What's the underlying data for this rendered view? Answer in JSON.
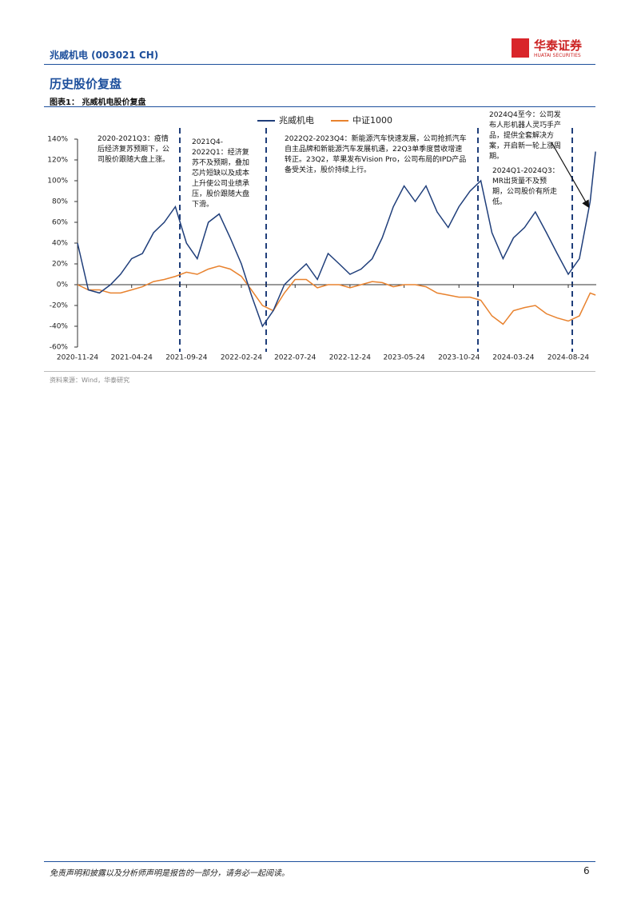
{
  "header": {
    "title": "兆威机电 (003021 CH)",
    "logo_cn": "华泰证券",
    "logo_en": "HUATAI SECURITIES"
  },
  "section_title": "历史股价复盘",
  "figure_caption": "图表1：  兆威机电股价复盘",
  "chart_data": {
    "type": "line",
    "x": [
      "2020-11-24",
      "2020-12-24",
      "2021-01-24",
      "2021-02-24",
      "2021-03-24",
      "2021-04-24",
      "2021-05-24",
      "2021-06-24",
      "2021-07-24",
      "2021-08-24",
      "2021-09-24",
      "2021-10-24",
      "2021-11-24",
      "2021-12-24",
      "2022-01-24",
      "2022-02-24",
      "2022-03-24",
      "2022-04-24",
      "2022-05-24",
      "2022-06-24",
      "2022-07-24",
      "2022-08-24",
      "2022-09-24",
      "2022-10-24",
      "2022-11-24",
      "2022-12-24",
      "2023-01-24",
      "2023-02-24",
      "2023-03-24",
      "2023-04-24",
      "2023-05-24",
      "2023-06-24",
      "2023-07-24",
      "2023-08-24",
      "2023-09-24",
      "2023-10-24",
      "2023-11-24",
      "2023-12-24",
      "2024-01-24",
      "2024-02-24",
      "2024-03-24",
      "2024-04-24",
      "2024-05-24",
      "2024-06-24",
      "2024-07-24",
      "2024-08-24",
      "2024-09-24",
      "2024-10-24",
      "2024-11-08"
    ],
    "series": [
      {
        "name": "兆威机电",
        "color": "#1f3e7a",
        "values": [
          40,
          -5,
          -8,
          0,
          10,
          25,
          30,
          50,
          60,
          75,
          40,
          25,
          60,
          68,
          45,
          20,
          -10,
          -40,
          -25,
          0,
          10,
          20,
          5,
          30,
          20,
          10,
          15,
          25,
          45,
          75,
          95,
          80,
          95,
          70,
          55,
          75,
          90,
          100,
          50,
          25,
          45,
          55,
          70,
          50,
          30,
          10,
          25,
          80,
          128
        ]
      },
      {
        "name": "中证1000",
        "color": "#e8822e",
        "values": [
          0,
          -5,
          -5,
          -8,
          -8,
          -5,
          -2,
          3,
          5,
          8,
          12,
          10,
          15,
          18,
          15,
          8,
          -5,
          -20,
          -25,
          -8,
          5,
          5,
          -3,
          0,
          0,
          -3,
          0,
          3,
          2,
          -2,
          0,
          0,
          -2,
          -8,
          -10,
          -12,
          -12,
          -15,
          -30,
          -38,
          -25,
          -22,
          -20,
          -28,
          -32,
          -35,
          -30,
          -8,
          -10
        ]
      }
    ],
    "xlim": [
      "2020-11-24",
      "2024-11-10"
    ],
    "xticks": [
      "2020-11-24",
      "2021-04-24",
      "2021-09-24",
      "2022-02-24",
      "2022-07-24",
      "2022-12-24",
      "2023-05-24",
      "2023-10-24",
      "2024-03-24",
      "2024-08-24"
    ],
    "ylim": [
      -60,
      140
    ],
    "yticks": [
      {
        "value": -60,
        "label": "-60%"
      },
      {
        "value": -40,
        "label": "-40%"
      },
      {
        "value": -20,
        "label": "-20%"
      },
      {
        "value": 0,
        "label": "0%"
      },
      {
        "value": 20,
        "label": "20%"
      },
      {
        "value": 40,
        "label": "40%"
      },
      {
        "value": 60,
        "label": "60%"
      },
      {
        "value": 80,
        "label": "80%"
      },
      {
        "value": 100,
        "label": "100%"
      },
      {
        "value": 120,
        "label": "120%"
      },
      {
        "value": 140,
        "label": "140%"
      }
    ],
    "annotations": [
      "2020-2021Q3：疫情后经济复苏预期下，公司股价跟随大盘上涨。",
      "2021Q4-2022Q1：经济复苏不及预期，叠加芯片短缺以及成本上升使公司业绩承压，股价跟随大盘下滑。",
      "2022Q2-2023Q4：新能源汽车快速发展，公司抢抓汽车自主品牌和新能源汽车发展机遇，22Q3单季度营收增速转正。23Q2，苹果发布Vision Pro，公司布局的IPD产品备受关注，股价持续上行。",
      "2024Q4至今：公司发布人形机器人灵巧手产品，提供全套解决方案，开启新一轮上涨周期。",
      "2024Q1-2024Q3：MR出货量不及预期，公司股价有所走低。"
    ]
  },
  "source": "资料来源：Wind，华泰研究",
  "footer": "免责声明和披露以及分析师声明是报告的一部分，请务必一起阅读。",
  "page_number": "6"
}
